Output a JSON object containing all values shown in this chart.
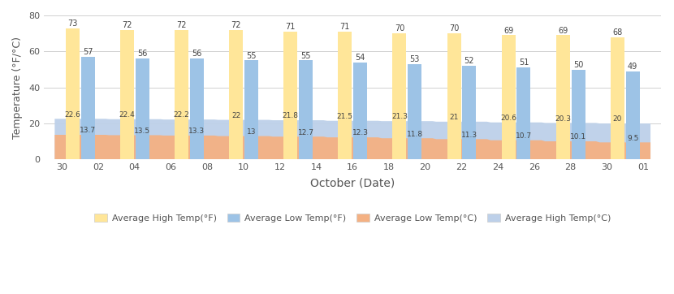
{
  "high_F_vals": [
    73,
    72,
    72,
    72,
    71,
    71,
    70,
    70,
    69,
    69,
    68
  ],
  "low_F_vals": [
    57,
    56,
    56,
    55,
    55,
    54,
    53,
    52,
    51,
    50,
    49
  ],
  "high_C_vals": [
    22.6,
    22.4,
    22.2,
    22.0,
    21.8,
    21.5,
    21.3,
    21.0,
    20.6,
    20.3,
    20.0
  ],
  "low_C_vals": [
    13.7,
    13.5,
    13.3,
    13.0,
    12.7,
    12.3,
    11.8,
    11.3,
    10.7,
    10.1,
    9.5
  ],
  "x_labels": [
    "30",
    "02",
    "04",
    "06",
    "08",
    "10",
    "12",
    "14",
    "16",
    "18",
    "20",
    "22",
    "24",
    "26",
    "28",
    "30",
    "01"
  ],
  "color_high_F": "#FFE699",
  "color_low_F": "#9DC3E6",
  "color_low_C": "#F4B183",
  "color_high_C": "#BDD0E9",
  "xlabel": "October (Date)",
  "ylabel": "Temperature (°F/°C)",
  "ylim": [
    0,
    80
  ],
  "yticks": [
    0,
    20,
    40,
    60,
    80
  ]
}
